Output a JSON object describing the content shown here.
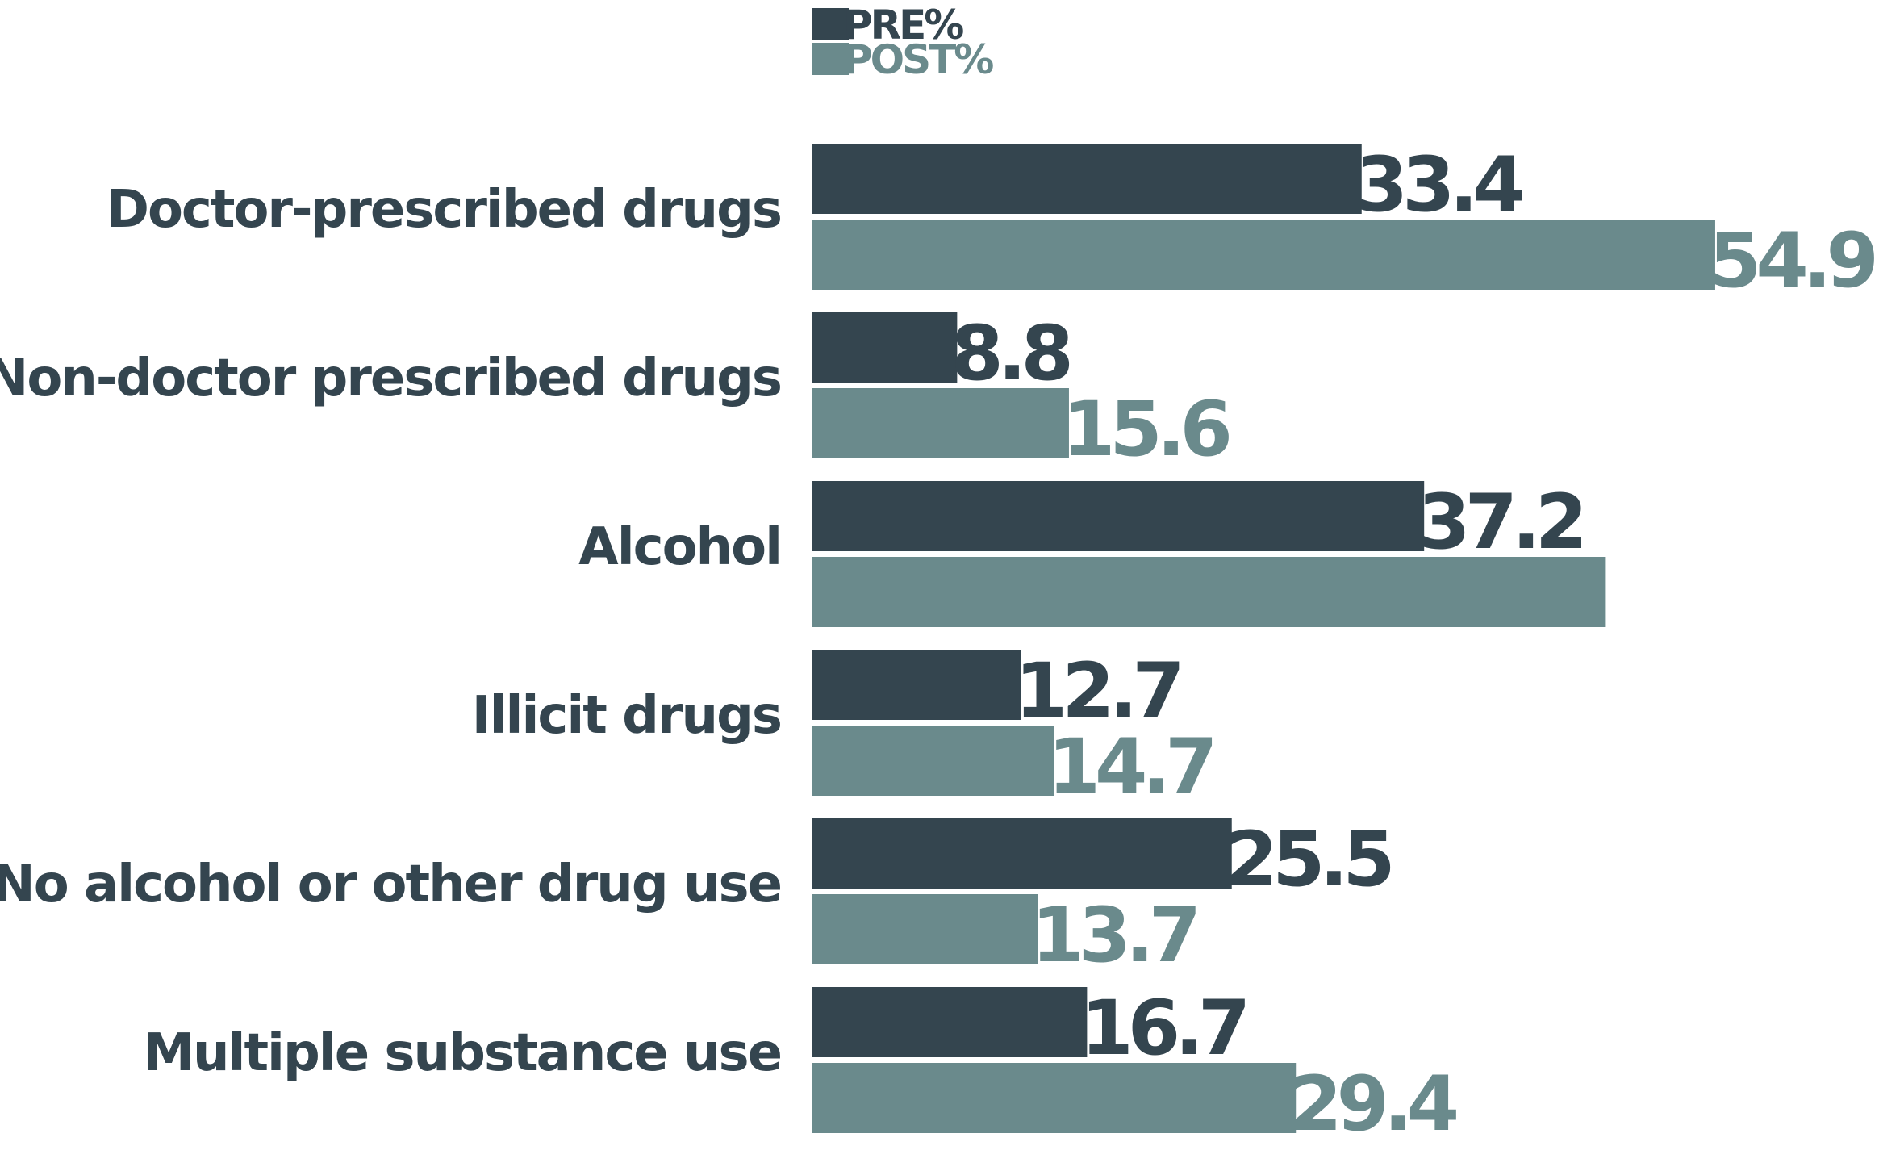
{
  "chart_data": {
    "type": "bar",
    "orientation": "horizontal",
    "categories": [
      "Doctor-prescribed drugs",
      "Non-doctor prescribed drugs",
      "Alcohol",
      "Illicit drugs",
      "No alcohol or other drug use",
      "Multiple substance use"
    ],
    "series": [
      {
        "name": "PRE%",
        "color": "#34454f",
        "values": [
          33.4,
          8.8,
          37.2,
          12.7,
          25.5,
          16.7
        ],
        "labels": [
          "33.4",
          "8.8",
          "37.2",
          "12.7",
          "25.5",
          "16.7"
        ]
      },
      {
        "name": "POST%",
        "color": "#6a8a8c",
        "values": [
          54.9,
          15.6,
          48.2,
          14.7,
          13.7,
          29.4
        ],
        "labels": [
          "54.9",
          "15.6",
          "",
          "14.7",
          "13.7",
          "29.4"
        ]
      }
    ],
    "xlim": [
      0,
      55
    ],
    "legend_position": "top",
    "grid": false
  }
}
